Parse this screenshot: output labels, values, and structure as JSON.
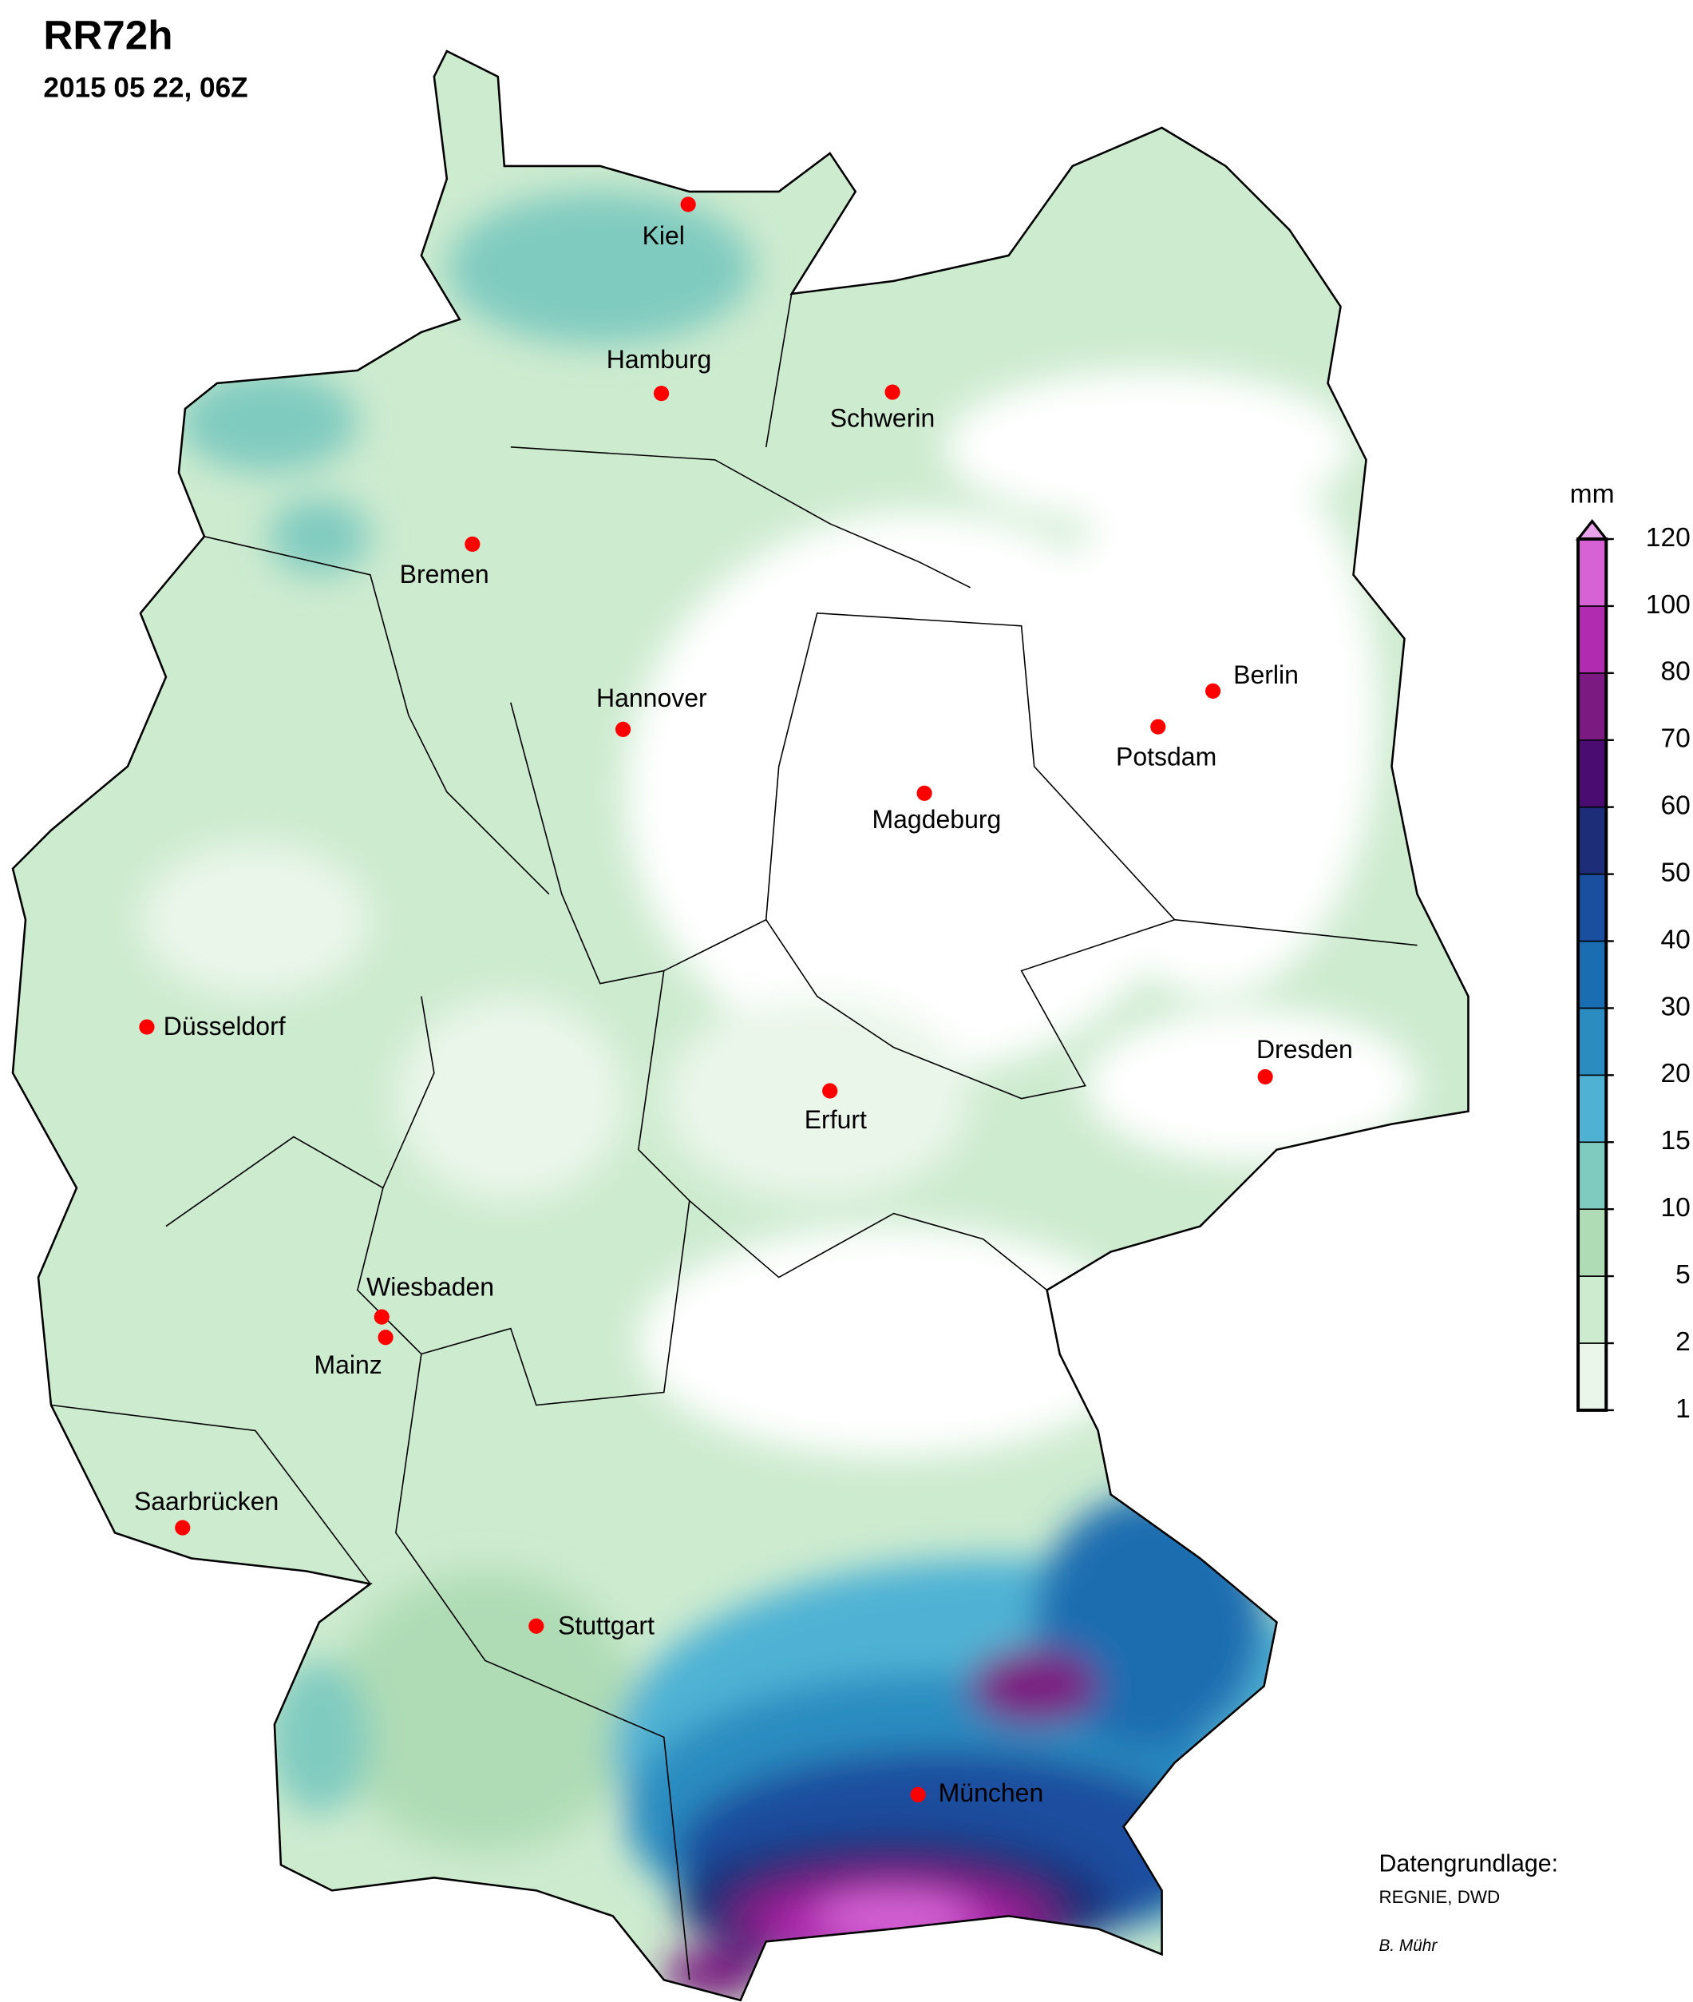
{
  "header": {
    "title": "RR72h",
    "subtitle": "2015 05 22, 06Z"
  },
  "cities": [
    "Kiel",
    "Hamburg",
    "Schwerin",
    "Bremen",
    "Hannover",
    "Magdeburg",
    "Berlin",
    "Potsdam",
    "Düsseldorf",
    "Dresden",
    "Erfurt",
    "Wiesbaden",
    "Mainz",
    "Saarbrücken",
    "Stuttgart",
    "München"
  ],
  "legend": {
    "unit": "mm",
    "levels": [
      1,
      2,
      5,
      10,
      15,
      20,
      30,
      40,
      50,
      60,
      70,
      80,
      100,
      120
    ],
    "colors": [
      "#eaf6ea",
      "#cdebcf",
      "#afdcb5",
      "#80cbc0",
      "#4fb2d4",
      "#2b8cc0",
      "#1a6db0",
      "#1a4e9e",
      "#1e2d77",
      "#4b0c72",
      "#7b1a81",
      "#b02bb0",
      "#d662d6"
    ],
    "extend_color": "#e9a3e9"
  },
  "footer": {
    "source_label": "Datengrundlage:",
    "source": "REGNIE, DWD",
    "author": "B. Mühr"
  }
}
